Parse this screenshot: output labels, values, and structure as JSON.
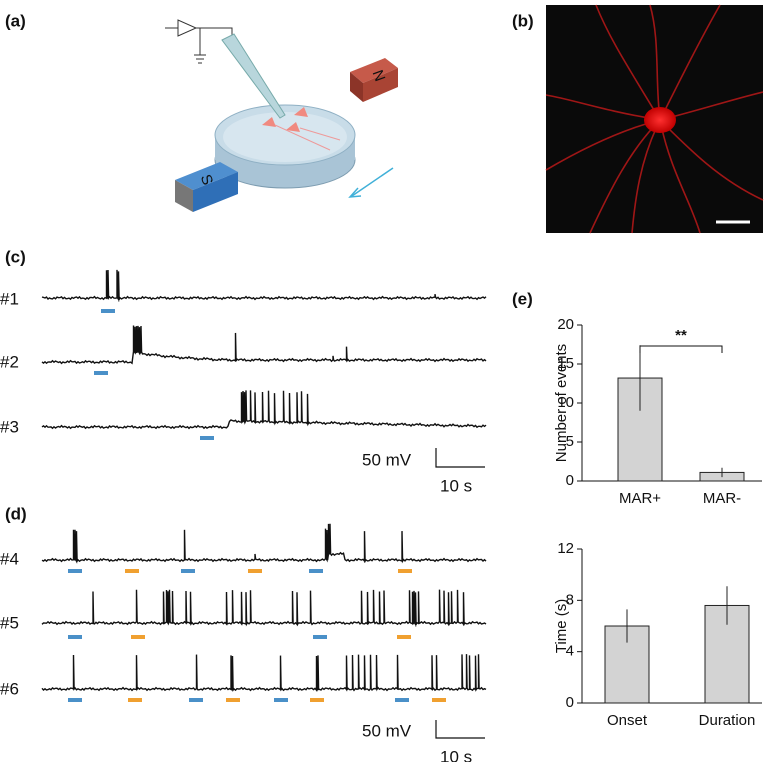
{
  "panel_labels": [
    "(a)",
    "(b)",
    "(c)",
    "(d)",
    "(e)"
  ],
  "magnets": {
    "north": "N",
    "south": "S"
  },
  "traces": {
    "c": [
      "#1",
      "#2",
      "#3"
    ],
    "d": [
      "#4",
      "#5",
      "#6"
    ]
  },
  "scale_bars": {
    "c": {
      "voltage": "50 mV",
      "time": "10 s"
    },
    "d": {
      "voltage": "50 mV",
      "time": "10 s"
    }
  },
  "chart_data": [
    {
      "type": "bar",
      "ylabel": "Number of events",
      "categories": [
        "MAR+",
        "MAR-"
      ],
      "values": [
        13.2,
        1.1
      ],
      "errors": [
        4.2,
        0.6
      ],
      "color": "#d3d3d3",
      "ylim": [
        0,
        20
      ],
      "yticks": [
        0,
        5,
        10,
        15,
        20
      ],
      "annotation": "**"
    },
    {
      "type": "bar",
      "ylabel": "Time (s)",
      "categories": [
        "Onset",
        "Duration"
      ],
      "values": [
        6.0,
        7.6
      ],
      "errors": [
        1.3,
        1.5
      ],
      "color": "#d3d3d3",
      "ylim": [
        0,
        12
      ],
      "yticks": [
        0,
        4,
        8,
        12
      ]
    }
  ]
}
